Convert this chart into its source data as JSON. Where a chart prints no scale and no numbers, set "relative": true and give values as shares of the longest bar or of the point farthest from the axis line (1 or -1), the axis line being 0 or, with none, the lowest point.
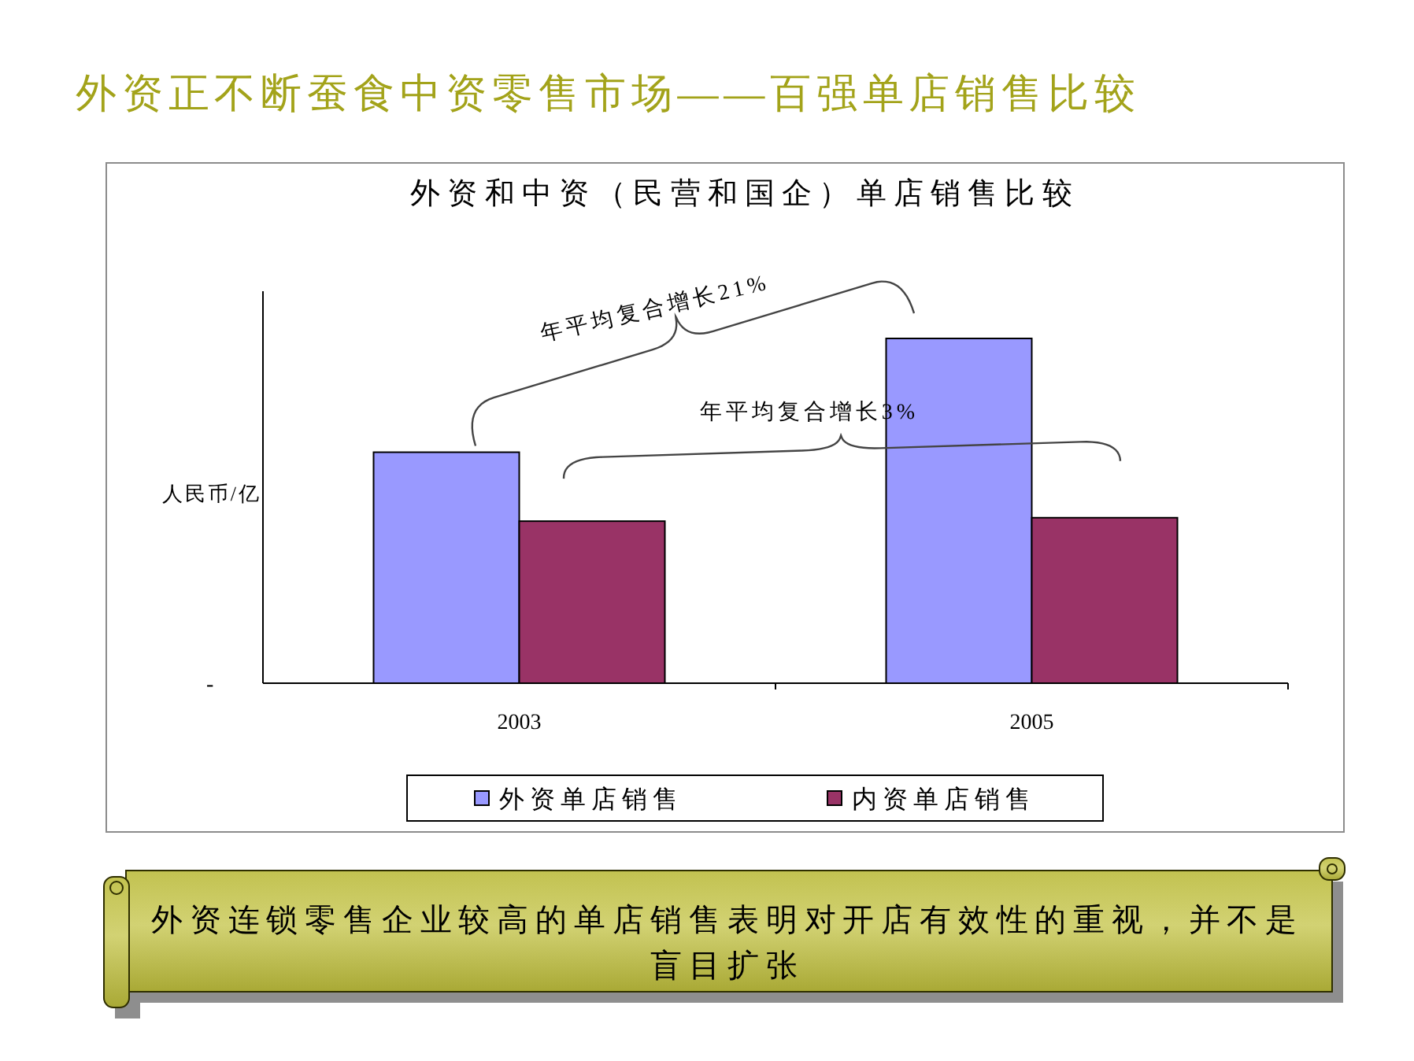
{
  "chart_data": {
    "type": "bar",
    "title": "外资正不断蚕食中资零售市场——百强单店销售比较",
    "subtitle": "外资和中资（民营和国企）单店销售比较",
    "ylabel": "人民币/亿",
    "categories": [
      "2003",
      "2005"
    ],
    "relative": true,
    "series": [
      {
        "name": "外资单店销售",
        "color": "#9999ff",
        "values": [
          0.67,
          1
        ]
      },
      {
        "name": "内资单店销售",
        "color": "#993366",
        "values": [
          0.47,
          0.48
        ]
      }
    ],
    "legend": "bottom",
    "annotations": [
      "年平均复合增长21%",
      "年平均复合增长3%",
      "-",
      "外资连锁零售企业较高的单店销售表明对开店有效性的重视，并不是盲目扩张"
    ]
  }
}
